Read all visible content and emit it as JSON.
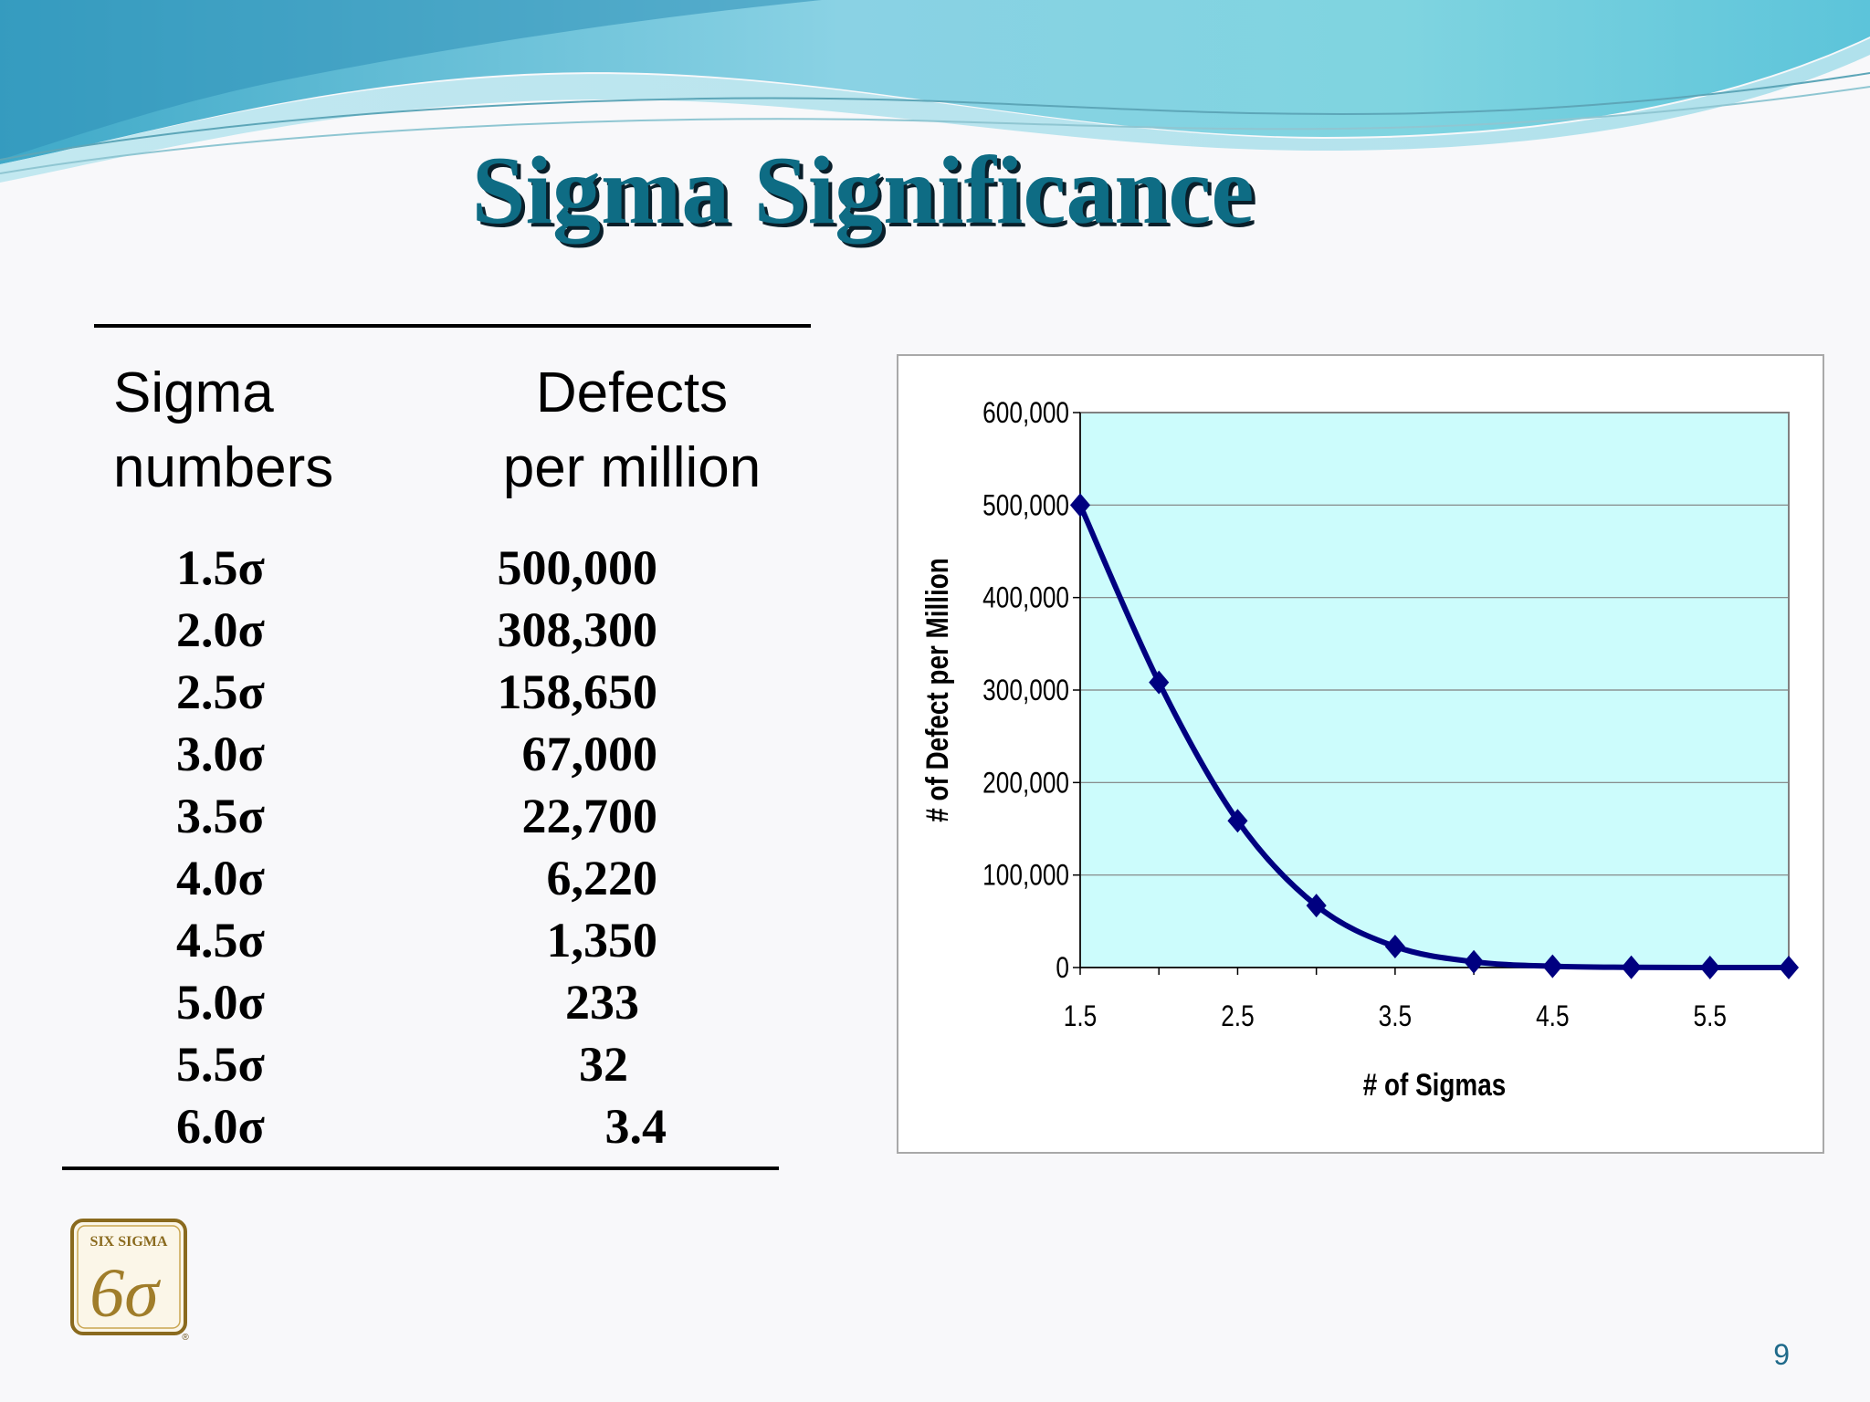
{
  "slide": {
    "title": "Sigma Significance",
    "page_number": "9"
  },
  "table": {
    "headers": {
      "sigma_line1": "Sigma",
      "sigma_line2": "numbers",
      "defects_line1": "Defects",
      "defects_line2": "per million"
    },
    "rows": [
      {
        "sigma": "1.5σ",
        "defects": "500,000"
      },
      {
        "sigma": "2.0σ",
        "defects": "308,300"
      },
      {
        "sigma": "2.5σ",
        "defects": "158,650"
      },
      {
        "sigma": "3.0σ",
        "defects": "67,000"
      },
      {
        "sigma": "3.5σ",
        "defects": "22,700"
      },
      {
        "sigma": "4.0σ",
        "defects": "6,220"
      },
      {
        "sigma": "4.5σ",
        "defects": "1,350"
      },
      {
        "sigma": "5.0σ",
        "defects": "233"
      },
      {
        "sigma": "5.5σ",
        "defects": "32"
      },
      {
        "sigma": "6.0σ",
        "defects": "3.4"
      }
    ]
  },
  "chart_data": {
    "type": "line",
    "xlabel": "# of Sigmas",
    "ylabel": "# of Defect per Million",
    "xlim": [
      1.5,
      6.0
    ],
    "ylim": [
      0,
      600000
    ],
    "x_ticks": [
      "1.5",
      "2.5",
      "3.5",
      "4.5",
      "5.5"
    ],
    "y_ticks": [
      "600,000",
      "500,000",
      "400,000",
      "300,000",
      "200,000",
      "100,000",
      "0"
    ],
    "grid": true,
    "legend": "none",
    "series": [
      {
        "x": [
          1.5,
          2.0,
          2.5,
          3.0,
          3.5,
          4.0,
          4.5,
          5.0,
          5.5,
          6.0
        ],
        "values": [
          500000,
          308300,
          158650,
          67000,
          22700,
          6220,
          1350,
          233,
          32,
          3.4
        ]
      }
    ],
    "colors": {
      "line": "#000080",
      "plot_bg": "#ccfcfc",
      "grid": "#7f7f7f"
    }
  },
  "logo": {
    "text": "SIX SIGMA",
    "glyph": "6σ",
    "mark": "®"
  }
}
